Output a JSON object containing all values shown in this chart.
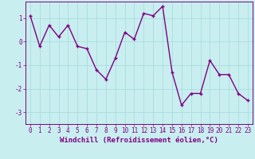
{
  "x": [
    0,
    1,
    2,
    3,
    4,
    5,
    6,
    7,
    8,
    9,
    10,
    11,
    12,
    13,
    14,
    15,
    16,
    17,
    18,
    19,
    20,
    21,
    22,
    23
  ],
  "y": [
    1.1,
    -0.2,
    0.7,
    0.2,
    0.7,
    -0.2,
    -0.3,
    -1.2,
    -1.6,
    -0.7,
    0.4,
    0.1,
    1.2,
    1.1,
    1.5,
    -1.3,
    -2.7,
    -2.2,
    -2.2,
    -0.8,
    -1.4,
    -1.4,
    -2.2,
    -2.5
  ],
  "line_color": "#800080",
  "marker": "+",
  "bg_color": "#c8eef0",
  "grid_color": "#aadddd",
  "xlabel": "Windchill (Refroidissement éolien,°C)",
  "xlim": [
    -0.5,
    23.5
  ],
  "ylim": [
    -3.5,
    1.7
  ],
  "yticks": [
    -3,
    -2,
    -1,
    0,
    1
  ],
  "xticks": [
    0,
    1,
    2,
    3,
    4,
    5,
    6,
    7,
    8,
    9,
    10,
    11,
    12,
    13,
    14,
    15,
    16,
    17,
    18,
    19,
    20,
    21,
    22,
    23
  ],
  "tick_label_fontsize": 5.5,
  "xlabel_fontsize": 6.5,
  "line_width": 1.0,
  "marker_size": 3.5
}
